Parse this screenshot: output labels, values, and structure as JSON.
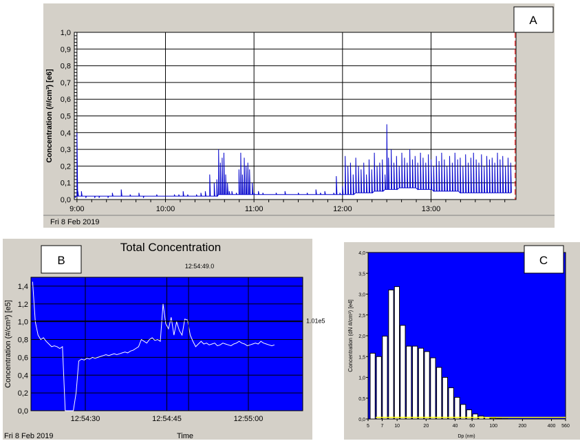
{
  "chart_data": [
    {
      "panel_label": "A",
      "type": "line",
      "ylabel": "Concentration (#/cm³) [e6]",
      "xlabel": "",
      "date": "Fri 8 Feb 2019",
      "yticks": [
        "0,0",
        "0,1",
        "0,2",
        "0,3",
        "0,4",
        "0,5",
        "0,6",
        "0,7",
        "0,8",
        "0,9",
        "1,0"
      ],
      "ylim": [
        0,
        1.0
      ],
      "xticks": [
        {
          "label": "9:00",
          "t": 9.0
        },
        {
          "label": "10:00",
          "t": 10.0
        },
        {
          "label": "11:00",
          "t": 11.0
        },
        {
          "label": "12:00",
          "t": 12.0
        },
        {
          "label": "13:00",
          "t": 13.0
        }
      ],
      "xlim": [
        8.97,
        13.96
      ],
      "grid": true,
      "colors": {
        "line": "#0000cc",
        "cursor": "#ff0000",
        "plot_bg": "#ffffff",
        "panel_bg": "#d4d0c8"
      },
      "series": [
        {
          "t": [
            8.98,
            9.0,
            9.01,
            9.02,
            9.05,
            9.1,
            9.15,
            9.2,
            9.25,
            9.3,
            9.35,
            9.4,
            9.45,
            9.5,
            9.55,
            9.6,
            9.65,
            9.7,
            9.75,
            9.8,
            9.85,
            9.9,
            9.95,
            10.0,
            10.05,
            10.1,
            10.15,
            10.2,
            10.25,
            10.3,
            10.35,
            10.4,
            10.45,
            10.5,
            10.55,
            10.58,
            10.6,
            10.62,
            10.64,
            10.66,
            10.68,
            10.7,
            10.72,
            10.75,
            10.8,
            10.83,
            10.85,
            10.87,
            10.89,
            10.91,
            10.93,
            10.95,
            10.98,
            11.0,
            11.05,
            11.1,
            11.15,
            11.2,
            11.25,
            11.3,
            11.35,
            11.4,
            11.45,
            11.5,
            11.55,
            11.6,
            11.65,
            11.7,
            11.75,
            11.8,
            11.85,
            11.9,
            11.93,
            11.95,
            11.97,
            12.0,
            12.03,
            12.06,
            12.09,
            12.12,
            12.15,
            12.18,
            12.21,
            12.24,
            12.27,
            12.3,
            12.33,
            12.36,
            12.39,
            12.42,
            12.45,
            12.48,
            12.5,
            12.52,
            12.55,
            12.58,
            12.61,
            12.64,
            12.67,
            12.7,
            12.73,
            12.76,
            12.79,
            12.82,
            12.85,
            12.88,
            12.91,
            12.94,
            12.97,
            13.0,
            13.03,
            13.06,
            13.09,
            13.12,
            13.15,
            13.18,
            13.21,
            13.24,
            13.27,
            13.3,
            13.33,
            13.36,
            13.39,
            13.42,
            13.45,
            13.48,
            13.51,
            13.54,
            13.57,
            13.6,
            13.63,
            13.66,
            13.69,
            13.72,
            13.75,
            13.78,
            13.81,
            13.84,
            13.87,
            13.9,
            13.93,
            13.95
          ],
          "y": [
            0.01,
            0.4,
            0.05,
            0.02,
            0.05,
            0.01,
            0.02,
            0.01,
            0.01,
            0.02,
            0.01,
            0.04,
            0.02,
            0.06,
            0.02,
            0.03,
            0.02,
            0.04,
            0.01,
            0.02,
            0.02,
            0.03,
            0.02,
            0.02,
            0.02,
            0.03,
            0.03,
            0.05,
            0.03,
            0.02,
            0.03,
            0.04,
            0.05,
            0.15,
            0.1,
            0.12,
            0.3,
            0.22,
            0.25,
            0.28,
            0.15,
            0.1,
            0.05,
            0.05,
            0.04,
            0.18,
            0.28,
            0.15,
            0.25,
            0.2,
            0.22,
            0.18,
            0.1,
            0.04,
            0.05,
            0.04,
            0.03,
            0.03,
            0.04,
            0.03,
            0.05,
            0.03,
            0.03,
            0.04,
            0.03,
            0.04,
            0.03,
            0.06,
            0.04,
            0.05,
            0.03,
            0.04,
            0.14,
            0.03,
            0.04,
            0.08,
            0.26,
            0.2,
            0.22,
            0.15,
            0.25,
            0.2,
            0.18,
            0.22,
            0.15,
            0.24,
            0.18,
            0.28,
            0.2,
            0.22,
            0.24,
            0.15,
            0.45,
            0.25,
            0.3,
            0.22,
            0.26,
            0.2,
            0.28,
            0.25,
            0.22,
            0.3,
            0.24,
            0.26,
            0.22,
            0.28,
            0.25,
            0.22,
            0.27,
            0.24,
            0.2,
            0.26,
            0.23,
            0.28,
            0.24,
            0.2,
            0.26,
            0.22,
            0.28,
            0.24,
            0.25,
            0.2,
            0.27,
            0.22,
            0.25,
            0.28,
            0.24,
            0.22,
            0.27,
            0.2,
            0.26,
            0.24,
            0.25,
            0.22,
            0.28,
            0.24,
            0.26,
            0.2,
            0.25,
            0.22,
            0.26,
            0.2
          ],
          "baseline_y": [
            0.02,
            0.02,
            0.02,
            0.02,
            0.02,
            0.02,
            0.02,
            0.02,
            0.02,
            0.02,
            0.02,
            0.02,
            0.02,
            0.02,
            0.02,
            0.02,
            0.02,
            0.02,
            0.02,
            0.02,
            0.02,
            0.02,
            0.02,
            0.02,
            0.02,
            0.02,
            0.02,
            0.02,
            0.02,
            0.02,
            0.02,
            0.02,
            0.02,
            0.02,
            0.02,
            0.02,
            0.03,
            0.03,
            0.03,
            0.03,
            0.03,
            0.03,
            0.03,
            0.03,
            0.03,
            0.03,
            0.03,
            0.03,
            0.03,
            0.03,
            0.03,
            0.03,
            0.03,
            0.03,
            0.03,
            0.03,
            0.03,
            0.03,
            0.03,
            0.03,
            0.03,
            0.03,
            0.03,
            0.03,
            0.03,
            0.03,
            0.03,
            0.03,
            0.03,
            0.03,
            0.03,
            0.03,
            0.03,
            0.03,
            0.03,
            0.03,
            0.03,
            0.03,
            0.03,
            0.03,
            0.04,
            0.04,
            0.04,
            0.04,
            0.04,
            0.04,
            0.04,
            0.05,
            0.05,
            0.05,
            0.05,
            0.06,
            0.06,
            0.06,
            0.06,
            0.06,
            0.06,
            0.07,
            0.07,
            0.07,
            0.07,
            0.07,
            0.07,
            0.07,
            0.06,
            0.06,
            0.06,
            0.06,
            0.06,
            0.06,
            0.05,
            0.05,
            0.05,
            0.05,
            0.05,
            0.05,
            0.05,
            0.05,
            0.05,
            0.05,
            0.04,
            0.04,
            0.04,
            0.04,
            0.04,
            0.04,
            0.04,
            0.04,
            0.04,
            0.04,
            0.04,
            0.04,
            0.04,
            0.04,
            0.04,
            0.04,
            0.04,
            0.04,
            0.04,
            0.04
          ]
        }
      ]
    },
    {
      "panel_label": "B",
      "type": "line",
      "title": "Total Concentration",
      "xlabel": "Time",
      "ylabel": "Concentration (#/cm³) [e5]",
      "date": "Fri 8 Feb 2019",
      "cursor_time": "12:54:49.0",
      "cursor_value": "1.01e5",
      "yticks": [
        "0,0",
        "0,2",
        "0,4",
        "0,6",
        "0,8",
        "1,0",
        "1,2",
        "1,4"
      ],
      "ylim": [
        0,
        1.5
      ],
      "xticks": [
        {
          "label": "12:54:30",
          "s": 30
        },
        {
          "label": "12:54:45",
          "s": 45
        },
        {
          "label": "12:55:00",
          "s": 60
        }
      ],
      "xlim": [
        20,
        70
      ],
      "grid": true,
      "colors": {
        "line": "#ffffff",
        "plot_bg": "#0000ff",
        "grid": "#000000",
        "panel_bg": "#d4d0c8"
      },
      "series": [
        {
          "s": [
            20.3,
            20.8,
            21.3,
            21.8,
            22.3,
            22.8,
            23.3,
            23.8,
            24.3,
            24.8,
            25.3,
            25.8,
            26.3,
            26.8,
            27.3,
            27.8,
            28.3,
            28.8,
            29.3,
            29.8,
            30.3,
            30.8,
            31.3,
            31.8,
            32.3,
            32.8,
            33.3,
            33.8,
            34.3,
            34.8,
            35.3,
            35.8,
            36.3,
            36.8,
            37.3,
            37.8,
            38.3,
            38.8,
            39.3,
            39.8,
            40.3,
            40.8,
            41.3,
            41.8,
            42.3,
            42.8,
            43.3,
            43.8,
            44.3,
            44.8,
            45.3,
            45.8,
            46.3,
            46.8,
            47.3,
            47.8,
            48.3,
            48.8,
            49.3,
            49.8,
            50.3,
            50.8,
            51.3,
            51.8,
            52.3,
            52.8,
            53.3,
            53.8,
            54.3,
            54.8,
            55.3,
            55.8,
            56.3,
            56.8,
            57.3,
            57.8,
            58.3,
            58.8,
            59.3,
            59.8,
            60.3,
            60.8,
            61.3,
            61.8,
            62.3,
            62.8,
            63.3,
            63.8,
            64.3,
            64.8
          ],
          "y": [
            1.45,
            1.0,
            0.85,
            0.8,
            0.82,
            0.78,
            0.75,
            0.72,
            0.73,
            0.72,
            0.7,
            0.72,
            0.0,
            0.0,
            0.0,
            0.0,
            0.2,
            0.56,
            0.58,
            0.57,
            0.59,
            0.58,
            0.6,
            0.59,
            0.6,
            0.61,
            0.62,
            0.63,
            0.62,
            0.63,
            0.64,
            0.63,
            0.64,
            0.65,
            0.66,
            0.65,
            0.67,
            0.68,
            0.7,
            0.72,
            0.8,
            0.78,
            0.76,
            0.8,
            0.82,
            0.79,
            0.8,
            0.78,
            1.2,
            0.98,
            0.92,
            1.05,
            0.85,
            1.0,
            0.9,
            0.85,
            1.03,
            1.02,
            0.85,
            0.78,
            0.72,
            0.75,
            0.78,
            0.75,
            0.76,
            0.74,
            0.75,
            0.76,
            0.73,
            0.74,
            0.76,
            0.75,
            0.74,
            0.73,
            0.75,
            0.76,
            0.78,
            0.76,
            0.75,
            0.73,
            0.74,
            0.75,
            0.76,
            0.75,
            0.78,
            0.76,
            0.75,
            0.74,
            0.73,
            0.74
          ]
        }
      ]
    },
    {
      "panel_label": "C",
      "type": "bar",
      "xlabel": "Dp (nm)",
      "ylabel": "Concentration (dN #/cm³) [e4]",
      "yticks": [
        "0,0",
        "0,5",
        "1,0",
        "1,5",
        "2,0",
        "2,5",
        "3,0",
        "3,5",
        "4,0"
      ],
      "ylim": [
        0,
        4.0
      ],
      "xticks": [
        "5",
        "7",
        "10",
        "20",
        "40",
        "60",
        "100",
        "200",
        "400",
        "560"
      ],
      "xlim": [
        5,
        560
      ],
      "grid": false,
      "colors": {
        "bar": "#ffffff",
        "plot_bg": "#0000ff",
        "fit": "#ffff00",
        "panel_bg": "#d4d0c8"
      },
      "series": [
        {
          "bins_nm": [
            5.6,
            6.5,
            7.5,
            8.7,
            10.0,
            11.5,
            13.3,
            15.4,
            17.8,
            20.5,
            23.7,
            27.4,
            31.6,
            36.5,
            42.2,
            48.7,
            56.2,
            64.9,
            75.0,
            86.6,
            100.0,
            115.5,
            133.4,
            154.0,
            177.8,
            205.4,
            237.1,
            273.8,
            316.2,
            365.2,
            421.7,
            487.0
          ],
          "values": [
            1.58,
            1.5,
            1.99,
            3.1,
            3.18,
            2.25,
            1.75,
            1.75,
            1.7,
            1.62,
            1.47,
            1.24,
            1.0,
            0.75,
            0.52,
            0.35,
            0.22,
            0.12,
            0.07,
            0.04,
            0.02,
            0.01,
            0.005,
            0.0,
            0.0,
            0.0,
            0.0,
            0.0,
            0.0,
            0.0,
            0.0,
            0.0
          ]
        }
      ]
    }
  ]
}
